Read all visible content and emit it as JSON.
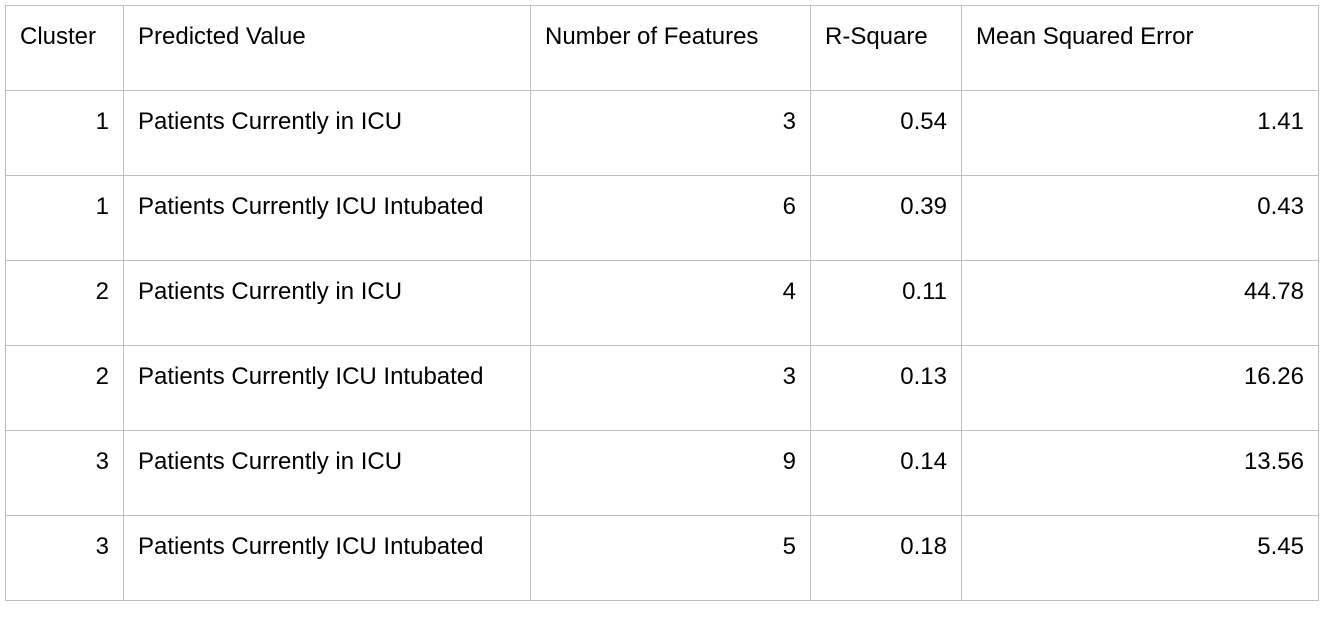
{
  "table": {
    "headers": [
      "Cluster",
      "Predicted Value",
      "Number of Features",
      "R-Square",
      "Mean Squared Error"
    ],
    "rows": [
      [
        "1",
        "Patients Currently in ICU",
        "3",
        "0.54",
        "1.41"
      ],
      [
        "1",
        "Patients Currently ICU Intubated",
        "6",
        "0.39",
        "0.43"
      ],
      [
        "2",
        "Patients Currently in ICU",
        "4",
        "0.11",
        "44.78"
      ],
      [
        "2",
        "Patients Currently ICU Intubated",
        "3",
        "0.13",
        "16.26"
      ],
      [
        "3",
        "Patients Currently in ICU",
        "9",
        "0.14",
        "13.56"
      ],
      [
        "3",
        "Patients Currently ICU Intubated",
        "5",
        "0.18",
        "5.45"
      ]
    ]
  }
}
